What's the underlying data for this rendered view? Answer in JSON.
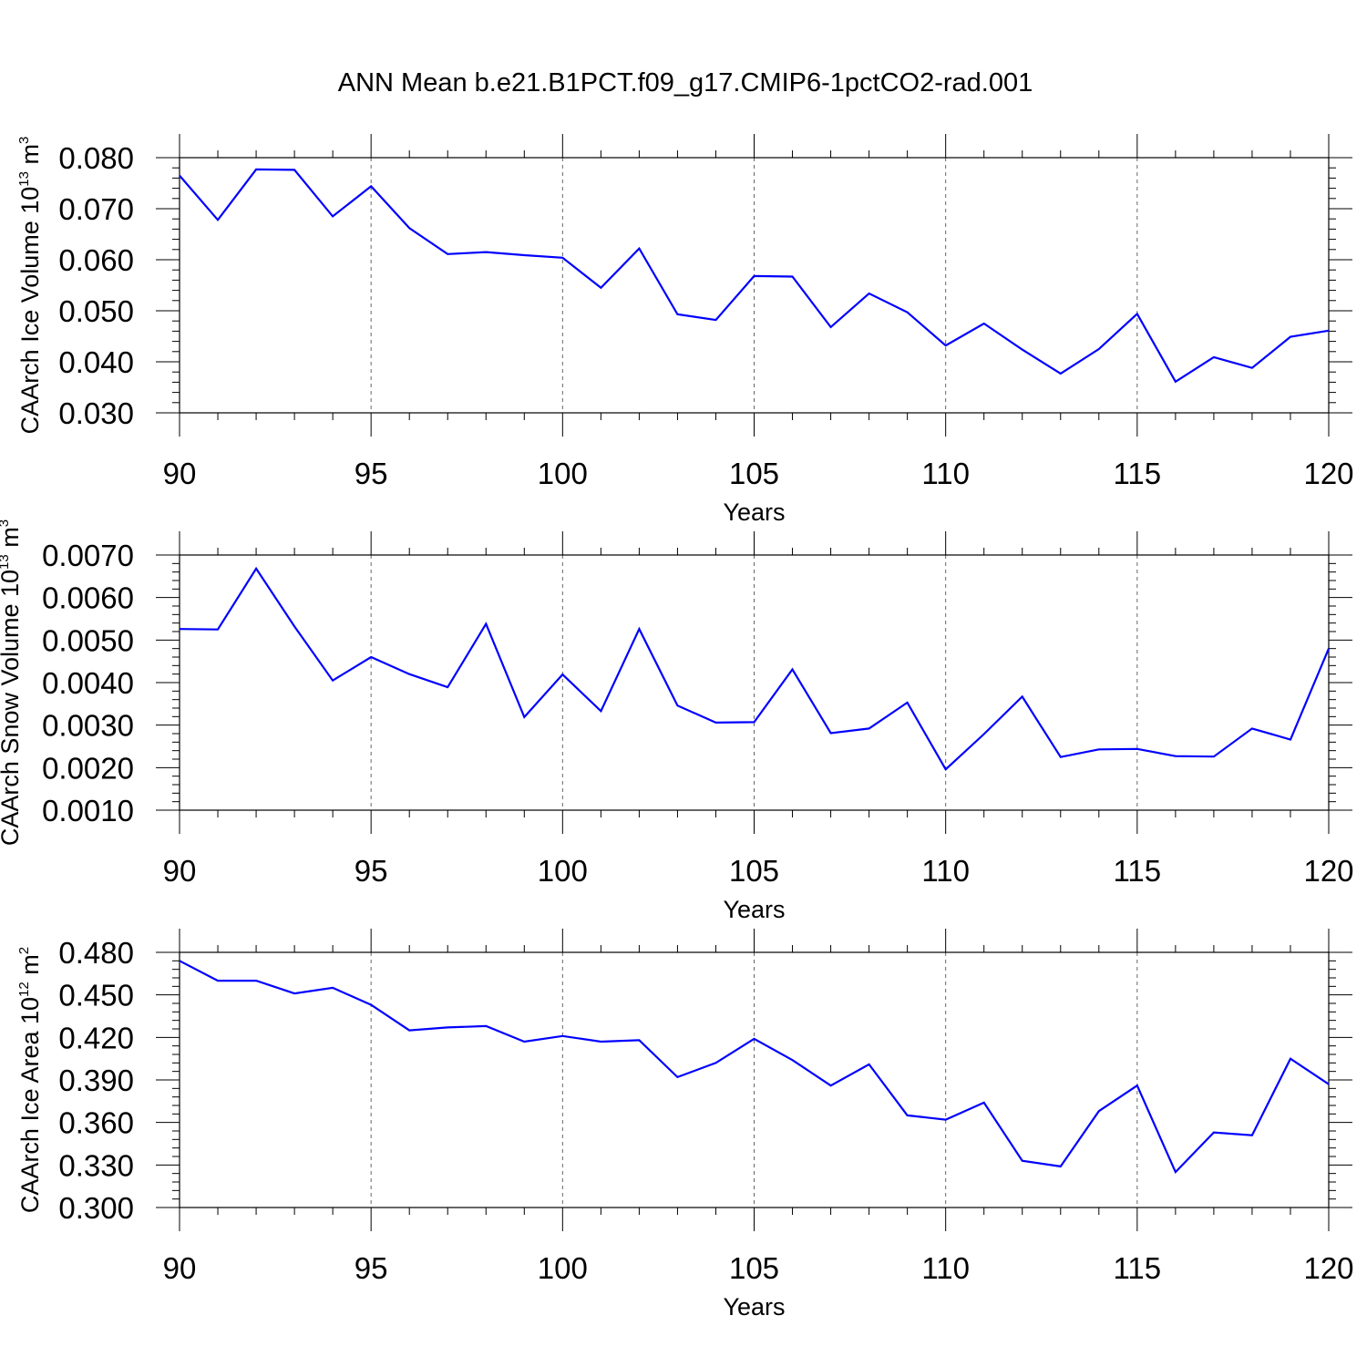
{
  "title": "ANN Mean b.e21.B1PCT.f09_g17.CMIP6-1pctCO2-rad.001",
  "line_color": "#0000ff",
  "chart_data": [
    {
      "type": "line",
      "ylabel": {
        "main": "CAArch Ice Volume 10",
        "exp": "13",
        "unit": " m",
        "unit_exp": "3"
      },
      "xlabel": "Years",
      "xlim": [
        90,
        120
      ],
      "ylim": [
        0.03,
        0.08
      ],
      "xticks": [
        "90",
        "95",
        "100",
        "105",
        "110",
        "115",
        "120"
      ],
      "yticks": [
        "0.030",
        "0.040",
        "0.050",
        "0.060",
        "0.070",
        "0.080"
      ],
      "grid": "vertical dashed at major x ticks",
      "x": [
        90,
        91,
        92,
        93,
        94,
        95,
        96,
        97,
        98,
        99,
        100,
        101,
        102,
        103,
        104,
        105,
        106,
        107,
        108,
        109,
        110,
        111,
        112,
        113,
        114,
        115,
        116,
        117,
        118,
        119,
        120
      ],
      "values": [
        0.0765,
        0.0678,
        0.0777,
        0.0776,
        0.0685,
        0.0744,
        0.0662,
        0.0611,
        0.0615,
        0.0609,
        0.0604,
        0.0545,
        0.0622,
        0.0493,
        0.0482,
        0.0568,
        0.0567,
        0.0468,
        0.0534,
        0.0497,
        0.0432,
        0.0475,
        0.0424,
        0.0377,
        0.0425,
        0.0494,
        0.0361,
        0.0409,
        0.0388,
        0.0449,
        0.0461
      ]
    },
    {
      "type": "line",
      "ylabel": {
        "main": "CAArch Snow Volume 10",
        "exp": "13",
        "unit": " m",
        "unit_exp": "3"
      },
      "xlabel": "Years",
      "xlim": [
        90,
        120
      ],
      "ylim": [
        0.001,
        0.007
      ],
      "xticks": [
        "90",
        "95",
        "100",
        "105",
        "110",
        "115",
        "120"
      ],
      "yticks": [
        "0.0010",
        "0.0020",
        "0.0030",
        "0.0040",
        "0.0050",
        "0.0060",
        "0.0070"
      ],
      "grid": "vertical dashed at major x ticks",
      "x": [
        90,
        91,
        92,
        93,
        94,
        95,
        96,
        97,
        98,
        99,
        100,
        101,
        102,
        103,
        104,
        105,
        106,
        107,
        108,
        109,
        110,
        111,
        112,
        113,
        114,
        115,
        116,
        117,
        118,
        119,
        120
      ],
      "values": [
        0.00526,
        0.00525,
        0.00668,
        0.00532,
        0.00405,
        0.0046,
        0.0042,
        0.00389,
        0.00538,
        0.00319,
        0.00419,
        0.00333,
        0.00526,
        0.00346,
        0.00306,
        0.00307,
        0.00431,
        0.00281,
        0.00292,
        0.00353,
        0.00196,
        0.00279,
        0.00367,
        0.00225,
        0.00243,
        0.00244,
        0.00227,
        0.00226,
        0.00292,
        0.00266,
        0.0048
      ]
    },
    {
      "type": "line",
      "ylabel": {
        "main": "CAArch Ice Area 10",
        "exp": "12",
        "unit": " m",
        "unit_exp": "2"
      },
      "xlabel": "Years",
      "xlim": [
        90,
        120
      ],
      "ylim": [
        0.3,
        0.48
      ],
      "xticks": [
        "90",
        "95",
        "100",
        "105",
        "110",
        "115",
        "120"
      ],
      "yticks": [
        "0.300",
        "0.330",
        "0.360",
        "0.390",
        "0.420",
        "0.450",
        "0.480"
      ],
      "grid": "vertical dashed at major x ticks",
      "x": [
        90,
        91,
        92,
        93,
        94,
        95,
        96,
        97,
        98,
        99,
        100,
        101,
        102,
        103,
        104,
        105,
        106,
        107,
        108,
        109,
        110,
        111,
        112,
        113,
        114,
        115,
        116,
        117,
        118,
        119,
        120
      ],
      "values": [
        0.474,
        0.46,
        0.46,
        0.451,
        0.455,
        0.443,
        0.425,
        0.427,
        0.428,
        0.417,
        0.421,
        0.417,
        0.418,
        0.392,
        0.402,
        0.419,
        0.404,
        0.386,
        0.401,
        0.365,
        0.362,
        0.374,
        0.333,
        0.329,
        0.368,
        0.386,
        0.325,
        0.353,
        0.351,
        0.405,
        0.387
      ]
    }
  ]
}
